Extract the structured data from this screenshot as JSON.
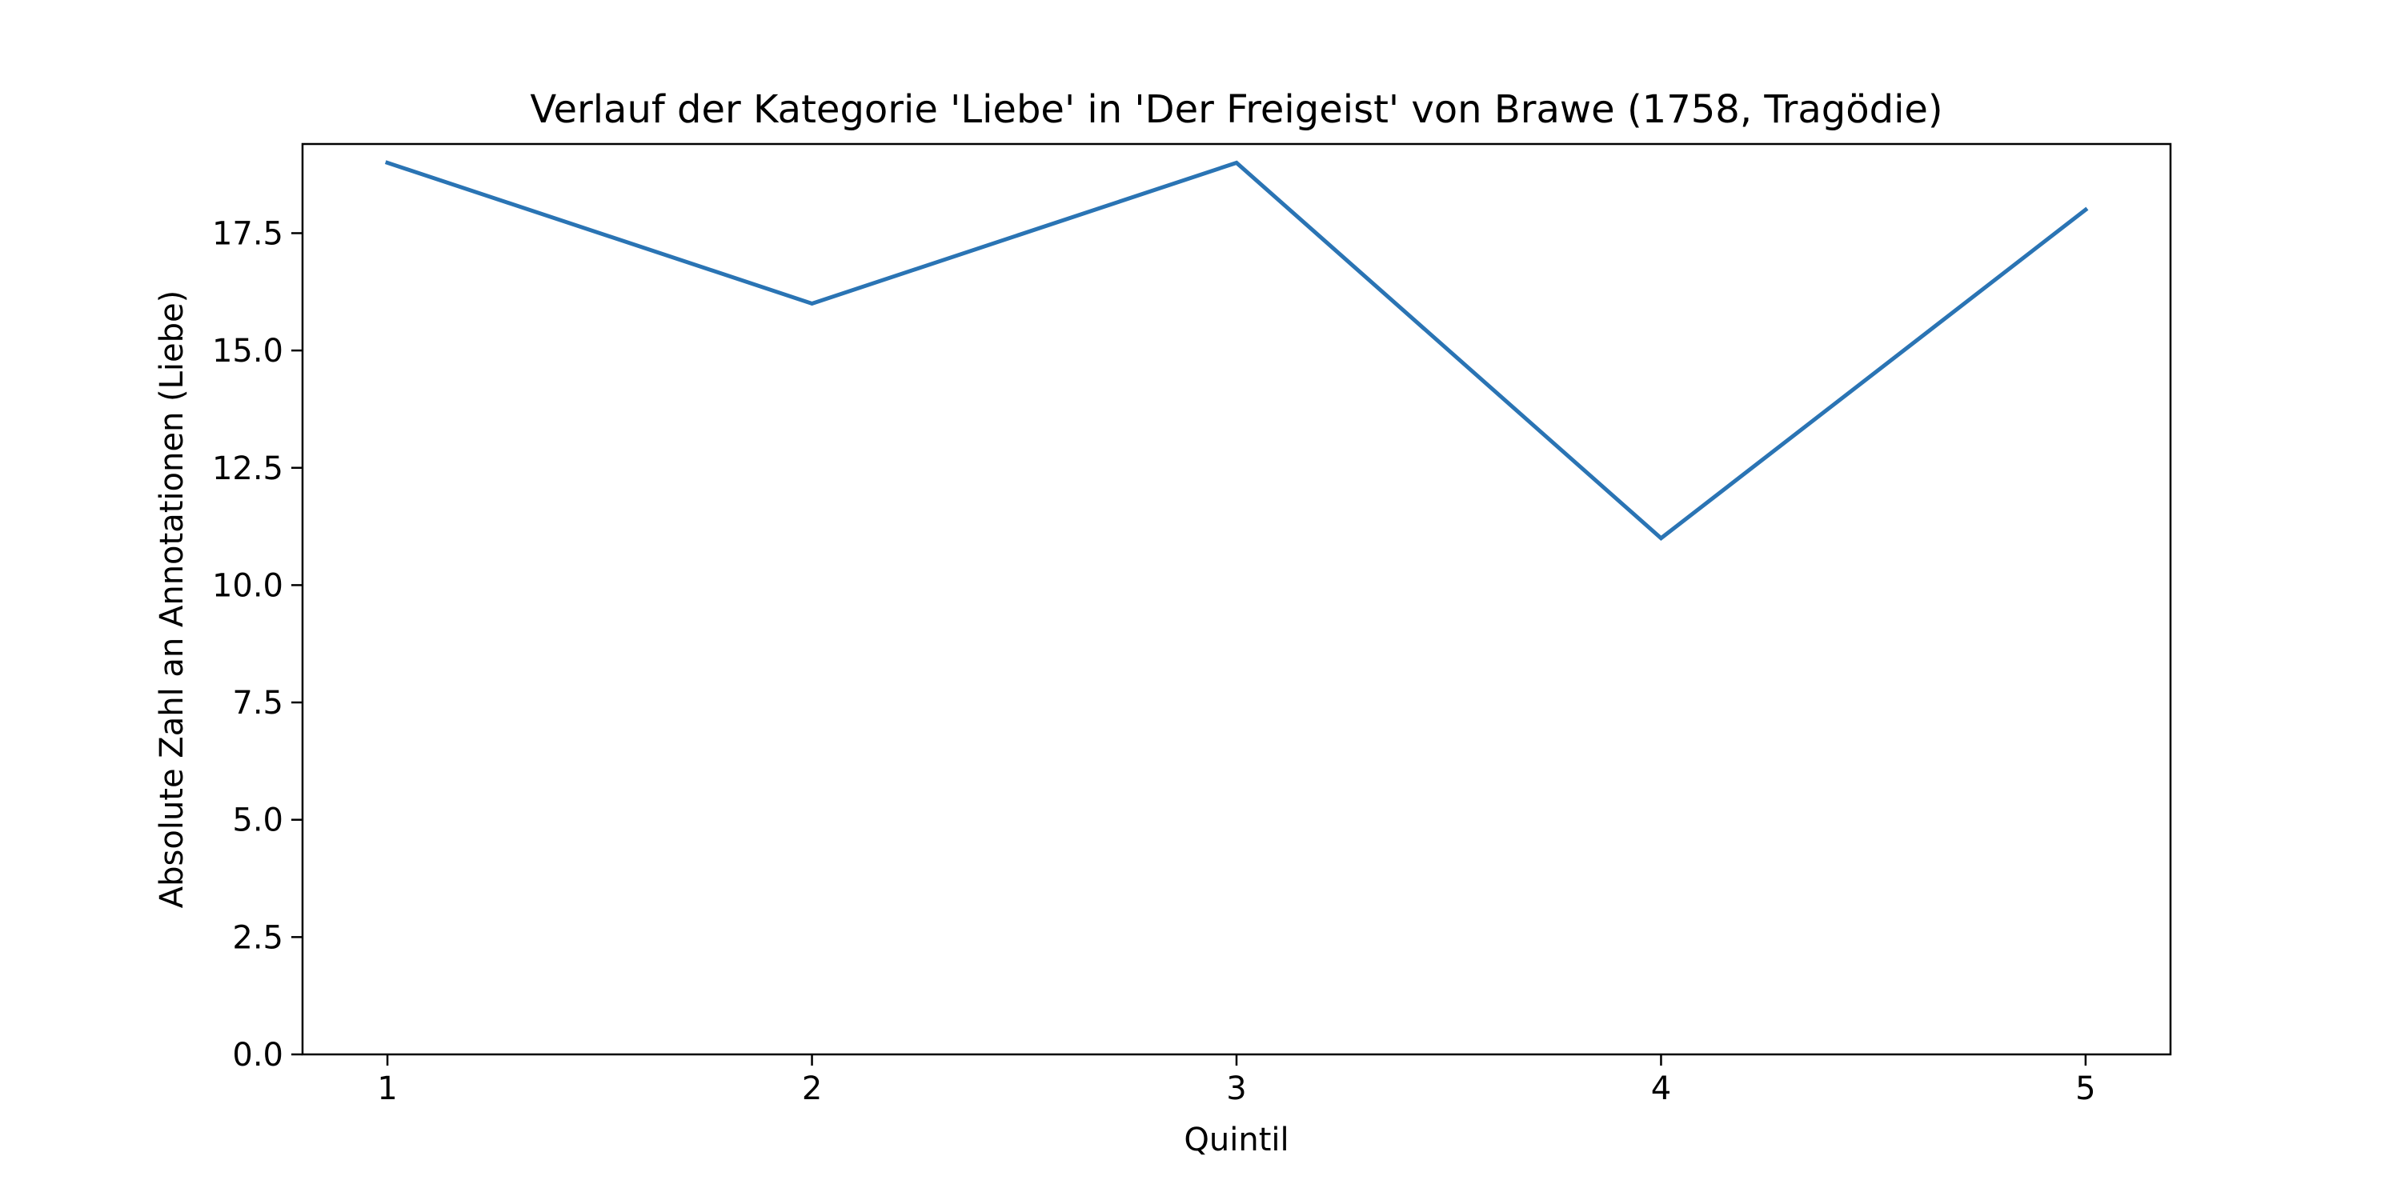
{
  "chart_data": {
    "type": "line",
    "title": "Verlauf der Kategorie 'Liebe' in 'Der Freigeist' von Brawe (1758, Tragödie)",
    "xlabel": "Quintil",
    "ylabel": "Absolute Zahl an Annotationen (Liebe)",
    "x": [
      1,
      2,
      3,
      4,
      5
    ],
    "series": [
      {
        "values": [
          19,
          16,
          19,
          11,
          18
        ]
      }
    ],
    "xticks": [
      "1",
      "2",
      "3",
      "4",
      "5"
    ],
    "yticks": [
      "0.0",
      "2.5",
      "5.0",
      "7.5",
      "10.0",
      "12.5",
      "15.0",
      "17.5"
    ],
    "xlim": [
      0.8,
      5.2
    ],
    "ylim": [
      0,
      19.4
    ],
    "line_color": "#2a74b4",
    "grid": false,
    "legend": "none"
  }
}
